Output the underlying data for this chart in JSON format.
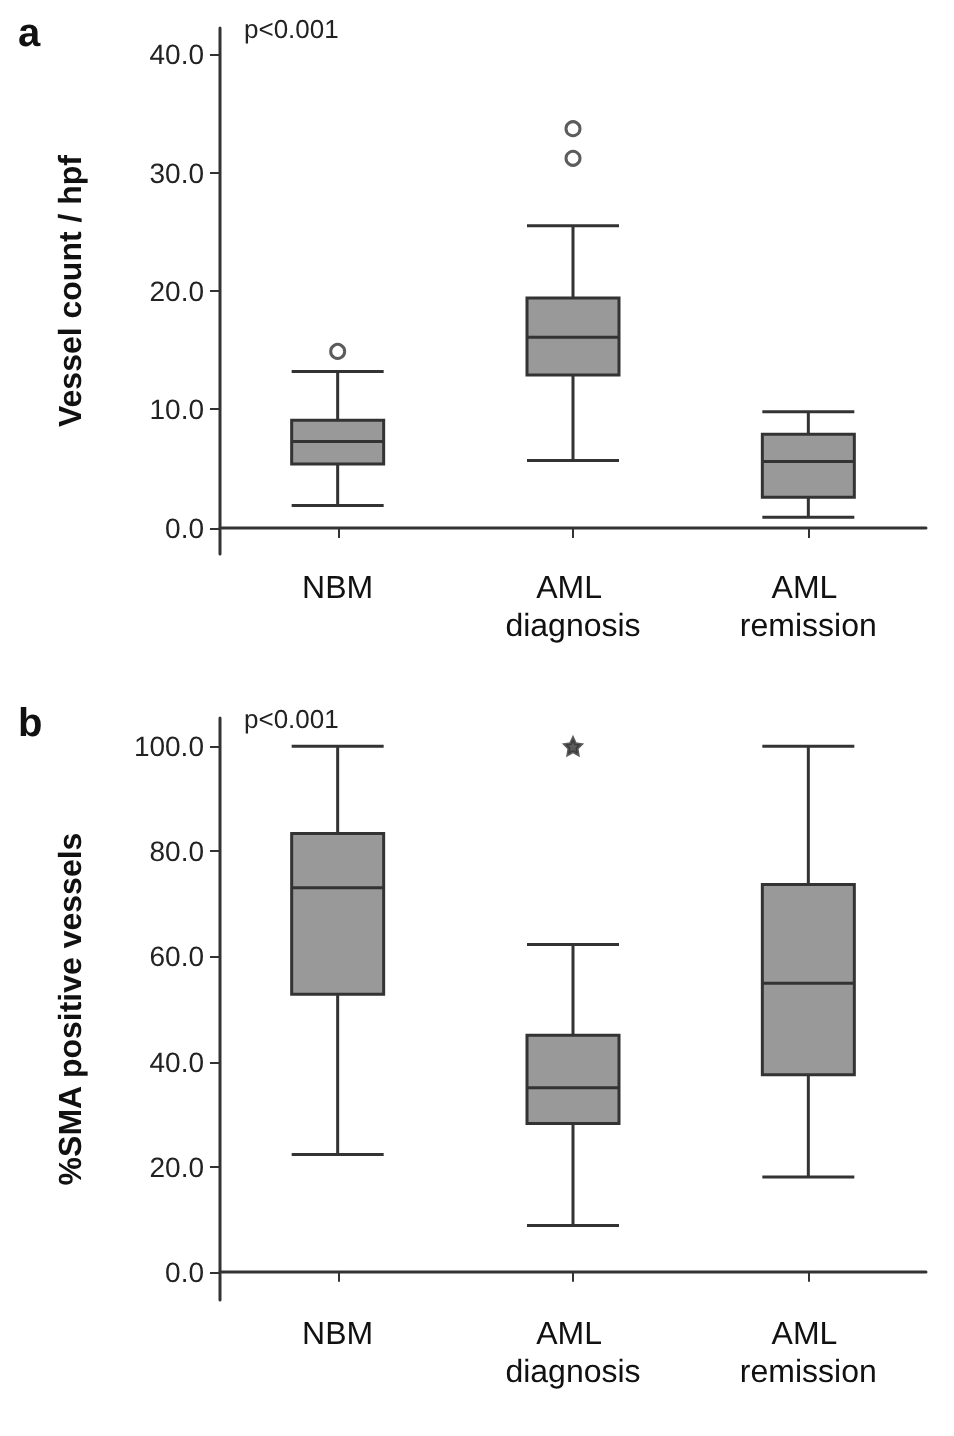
{
  "chart_data": [
    {
      "type": "box",
      "title": "a",
      "ylabel": "Vessel count / hpf",
      "annotations": [
        "p<0.001"
      ],
      "categories": [
        "NBM",
        "AML diagnosis",
        "AML remission"
      ],
      "color": "#999999",
      "marker": "circle",
      "grid": false,
      "ylim": [
        -2.2,
        42.2
      ],
      "yticks": [
        {
          "value": 0,
          "label": "0.0"
        },
        {
          "value": 10,
          "label": "10.0"
        },
        {
          "value": 20,
          "label": "20.0"
        },
        {
          "value": 30,
          "label": "30.0"
        },
        {
          "value": 40,
          "label": "40.0"
        }
      ],
      "boxes": [
        {
          "low": 1.9,
          "q1": 5.4,
          "median": 7.3,
          "q3": 9.1,
          "high": 13.2,
          "outliers": [
            14.9
          ]
        },
        {
          "low": 5.7,
          "q1": 12.9,
          "median": 16.1,
          "q3": 19.4,
          "high": 25.5,
          "outliers": [
            31.2,
            33.7
          ]
        },
        {
          "low": 0.9,
          "q1": 2.6,
          "median": 5.6,
          "q3": 7.9,
          "high": 9.8
        }
      ]
    },
    {
      "type": "box",
      "title": "b",
      "ylabel": "%SMA positive vessels",
      "annotations": [
        "p<0.001"
      ],
      "categories": [
        "NBM",
        "AML diagnosis",
        "AML remission"
      ],
      "color": "#999999",
      "marker": "star",
      "grid": false,
      "ylim": [
        -5.4,
        105.4
      ],
      "yticks": [
        {
          "value": 0,
          "label": "0.0"
        },
        {
          "value": 20,
          "label": "20.0"
        },
        {
          "value": 40,
          "label": "40.0"
        },
        {
          "value": 60,
          "label": "60.0"
        },
        {
          "value": 80,
          "label": "80.0"
        },
        {
          "value": 100,
          "label": "100.0"
        }
      ],
      "boxes": [
        {
          "low": 22.3,
          "q1": 52.8,
          "median": 73.1,
          "q3": 83.4,
          "high": 100
        },
        {
          "low": 8.8,
          "q1": 28.2,
          "median": 35.0,
          "q3": 45.0,
          "high": 62.3,
          "outliers": [
            100
          ]
        },
        {
          "low": 18.0,
          "q1": 37.5,
          "median": 54.9,
          "q3": 73.7,
          "high": 100
        }
      ]
    }
  ]
}
